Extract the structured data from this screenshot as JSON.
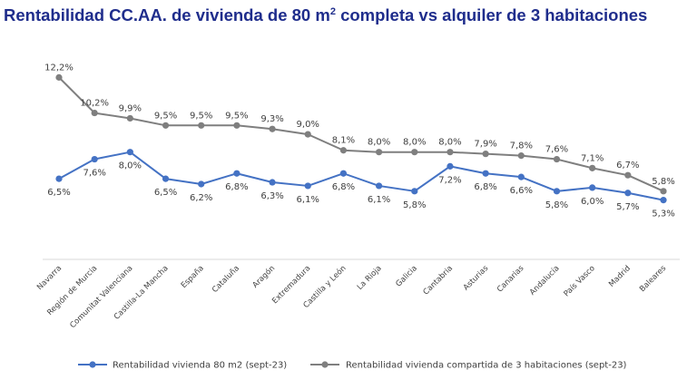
{
  "title": {
    "prefix": "Rentabilidad CC.AA. de vivienda de 80 m",
    "sup": "2",
    "suffix": " completa vs alquiler de 3 habitaciones"
  },
  "colors": {
    "series1": "#4472c4",
    "series2": "#7f7f7f",
    "title": "#1f2d8c",
    "axis": "#d9d9d9"
  },
  "chart_data": {
    "type": "line",
    "title": "Rentabilidad CC.AA. de vivienda de 80 m2 completa vs alquiler de 3 habitaciones",
    "categories": [
      "Navarra",
      "Región de Murcia",
      "Comunitat Valenciana",
      "Castilla-La Mancha",
      "España",
      "Cataluña",
      "Aragón",
      "Extremadura",
      "Castilla y León",
      "La Rioja",
      "Galicia",
      "Cantabria",
      "Asturias",
      "Canarias",
      "Andalucía",
      "País Vasco",
      "Madrid",
      "Baleares"
    ],
    "series": [
      {
        "name": "Rentabilidad vivienda 80 m2  (sept-23)",
        "values": [
          6.5,
          7.6,
          8.0,
          6.5,
          6.2,
          6.8,
          6.3,
          6.1,
          6.8,
          6.1,
          5.8,
          7.2,
          6.8,
          6.6,
          5.8,
          6.0,
          5.7,
          5.3
        ],
        "labels": [
          "6,5%",
          "7,6%",
          "8,0%",
          "6,5%",
          "6,2%",
          "6,8%",
          "6,3%",
          "6,1%",
          "6,8%",
          "6,1%",
          "5,8%",
          "7,2%",
          "6,8%",
          "6,6%",
          "5,8%",
          "6,0%",
          "5,7%",
          "5,3%"
        ]
      },
      {
        "name": "Rentabilidad vivienda compartida de 3 habitaciones (sept-23)",
        "values": [
          12.2,
          10.2,
          9.9,
          9.5,
          9.5,
          9.5,
          9.3,
          9.0,
          8.1,
          8.0,
          8.0,
          8.0,
          7.9,
          7.8,
          7.6,
          7.1,
          6.7,
          5.8
        ],
        "labels": [
          "12,2%",
          "10,2%",
          "9,9%",
          "9,5%",
          "9,5%",
          "9,5%",
          "9,3%",
          "9,0%",
          "8,1%",
          "8,0%",
          "8,0%",
          "8,0%",
          "7,9%",
          "7,8%",
          "7,6%",
          "7,1%",
          "6,7%",
          "5,8%"
        ]
      }
    ],
    "grid": false,
    "legend_position": "bottom"
  }
}
